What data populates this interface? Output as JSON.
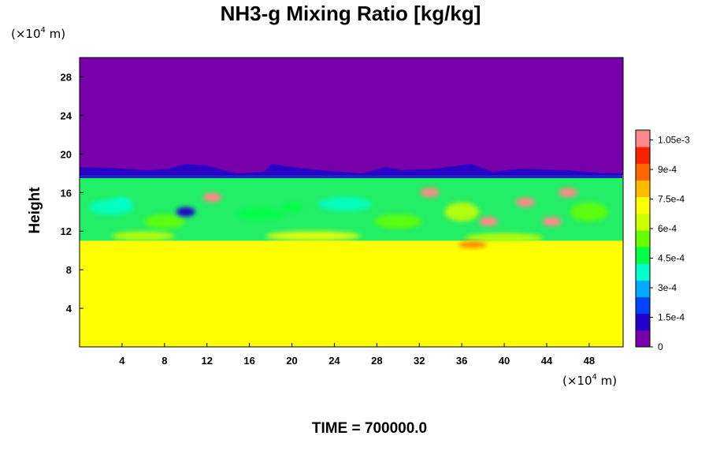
{
  "chart_data": {
    "type": "heatmap",
    "title": "NH3-g Mixing Ratio [kg/kg]",
    "ylabel": "Height",
    "xlabel": "",
    "x_unit": {
      "prefix": "(×10",
      "exp": "4",
      "suffix": " m)"
    },
    "y_unit": {
      "prefix": "(×10",
      "exp": "4",
      "suffix": " m)"
    },
    "x_ticks": [
      "4",
      "8",
      "12",
      "16",
      "20",
      "24",
      "28",
      "32",
      "36",
      "40",
      "44",
      "48"
    ],
    "x_tick_values": [
      4,
      8,
      12,
      16,
      20,
      24,
      28,
      32,
      36,
      40,
      44,
      48
    ],
    "y_ticks": [
      "4",
      "8",
      "12",
      "16",
      "20",
      "24",
      "28"
    ],
    "y_tick_values": [
      4,
      8,
      12,
      16,
      20,
      24,
      28
    ],
    "xlim": [
      0,
      51.2
    ],
    "ylim": [
      0,
      30
    ],
    "colorbar": {
      "range": [
        0,
        0.0011
      ],
      "tick_labels": [
        "0",
        "1.5e-4",
        "3e-4",
        "4.5e-4",
        "6e-4",
        "7.5e-4",
        "9e-4",
        "1.05e-3"
      ],
      "tick_values": [
        0,
        0.00015,
        0.0003,
        0.00045,
        0.0006,
        0.00075,
        0.0009,
        0.00105
      ],
      "colors": [
        "#7700aa",
        "#2200cc",
        "#0044ff",
        "#00aaff",
        "#00ffcc",
        "#00ff44",
        "#66ff00",
        "#ccff00",
        "#ffff00",
        "#ffbb00",
        "#ff6600",
        "#ff2200",
        "#ff8888"
      ]
    },
    "fields": {
      "upper_layer_value": 0,
      "lower_layer_value": 0.00076,
      "cloud_top_height": 17.8,
      "lower_layer_top_height": 11.0
    },
    "features": [
      {
        "x": 4,
        "y": 15.0,
        "value": 0.0004
      },
      {
        "x": 10,
        "y": 14.0,
        "value": 0.0001
      },
      {
        "x": 12.5,
        "y": 15.5,
        "value": 0.00103
      },
      {
        "x": 20,
        "y": 14.5,
        "value": 0.00045
      },
      {
        "x": 33,
        "y": 16.0,
        "value": 0.00105
      },
      {
        "x": 38.5,
        "y": 13.0,
        "value": 0.00105
      },
      {
        "x": 42,
        "y": 15.0,
        "value": 0.00103
      },
      {
        "x": 46,
        "y": 16.0,
        "value": 0.0011
      },
      {
        "x": 44.5,
        "y": 13.0,
        "value": 0.00105
      }
    ]
  },
  "footer": {
    "time_label": "TIME = 700000.0"
  }
}
